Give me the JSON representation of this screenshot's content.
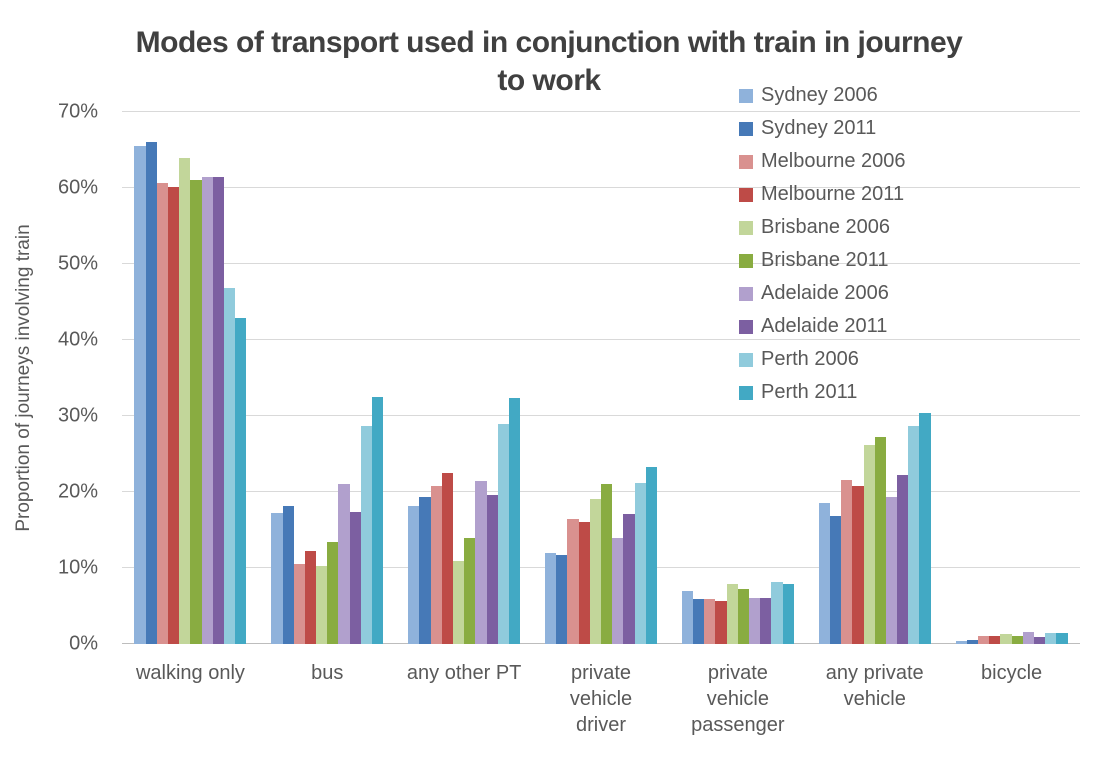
{
  "title": "Modes of transport used in conjunction with train in journey to work",
  "title_lines": [
    "Modes of transport used in conjunction with train in journey",
    "to work"
  ],
  "y_axis": {
    "label": "Proportion of journeys involving train",
    "ticks": [
      "0%",
      "10%",
      "20%",
      "30%",
      "40%",
      "50%",
      "60%",
      "70%"
    ]
  },
  "palette": {
    "title_text": "#404040",
    "axis_text": "#595959",
    "gridline": "#D9D9D9",
    "axis_line": "#BDBDBD",
    "background": "#FFFFFF"
  },
  "chart_data": {
    "type": "bar",
    "title": "Modes of transport used in conjunction with train in journey to work",
    "xlabel": "",
    "ylabel": "Proportion of journeys involving train",
    "ylim": [
      0,
      70
    ],
    "y_tick_step": 10,
    "grid": true,
    "legend_position": "top-right-overlay",
    "categories": [
      "walking only",
      "bus",
      "any other PT",
      "private vehicle driver",
      "private vehicle passenger",
      "any private vehicle",
      "bicycle"
    ],
    "category_label_lines": [
      [
        "walking only"
      ],
      [
        "bus"
      ],
      [
        "any other PT"
      ],
      [
        "private",
        "vehicle",
        "driver"
      ],
      [
        "private",
        "vehicle",
        "passenger"
      ],
      [
        "any private",
        "vehicle"
      ],
      [
        "bicycle"
      ]
    ],
    "series": [
      {
        "name": "Sydney 2006",
        "color": "#8FB2DB",
        "values": [
          65.5,
          17.2,
          18.1,
          12.0,
          7.0,
          18.5,
          0.4
        ]
      },
      {
        "name": "Sydney 2011",
        "color": "#4679B7",
        "values": [
          66.1,
          18.1,
          19.3,
          11.7,
          5.9,
          16.9,
          0.5
        ]
      },
      {
        "name": "Melbourne 2006",
        "color": "#D9918F",
        "values": [
          60.7,
          10.5,
          20.8,
          16.5,
          5.9,
          21.6,
          1.0
        ]
      },
      {
        "name": "Melbourne 2011",
        "color": "#BE4B47",
        "values": [
          60.1,
          12.2,
          22.5,
          16.1,
          5.7,
          20.8,
          1.1
        ]
      },
      {
        "name": "Brisbane 2006",
        "color": "#C2D69A",
        "values": [
          63.9,
          10.3,
          10.9,
          19.1,
          7.9,
          26.2,
          1.3
        ]
      },
      {
        "name": "Brisbane 2011",
        "color": "#89AC41",
        "values": [
          61.1,
          13.4,
          13.9,
          21.1,
          7.3,
          27.3,
          1.1
        ]
      },
      {
        "name": "Adelaide 2006",
        "color": "#B1A0CD",
        "values": [
          61.5,
          21.1,
          21.4,
          14.0,
          6.0,
          19.3,
          1.6
        ]
      },
      {
        "name": "Adelaide 2011",
        "color": "#7C5FA1",
        "values": [
          61.5,
          17.4,
          19.6,
          17.1,
          6.1,
          22.3,
          0.9
        ]
      },
      {
        "name": "Perth 2006",
        "color": "#90CBDC",
        "values": [
          46.9,
          28.7,
          28.9,
          21.2,
          8.2,
          28.7,
          1.4
        ]
      },
      {
        "name": "Perth 2011",
        "color": "#42A9C4",
        "values": [
          42.9,
          32.5,
          32.4,
          23.3,
          7.9,
          30.4,
          1.4
        ]
      }
    ]
  }
}
